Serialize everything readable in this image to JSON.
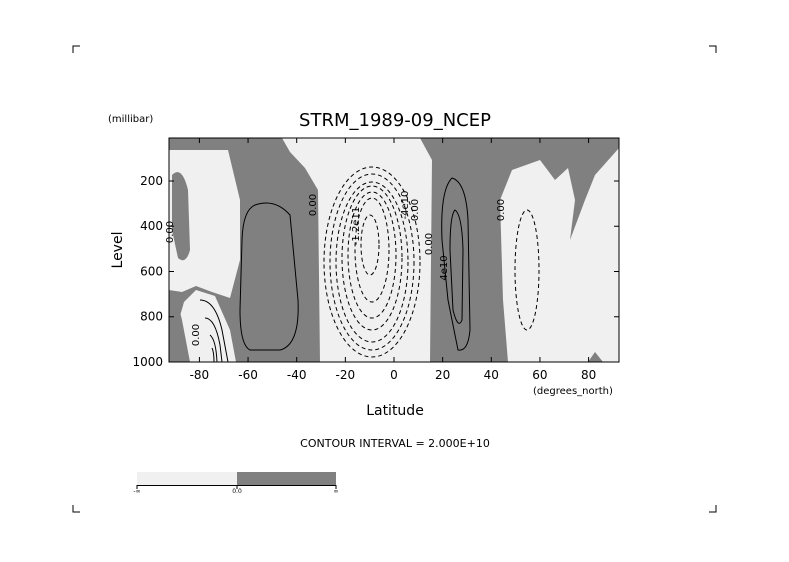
{
  "chart_data": {
    "type": "contour",
    "title": "STRM_1989-09_NCEP",
    "y_units": "(millibar)",
    "y_label": "Level",
    "x_label": "Latitude",
    "x_units": "(degrees_north)",
    "footer": "CONTOUR INTERVAL = 2.000E+10",
    "xlim": [
      -92.5,
      92.5
    ],
    "xticks": [
      -80,
      -60,
      -40,
      -20,
      0,
      20,
      40,
      60,
      80
    ],
    "ylim": [
      1000,
      10
    ],
    "yticks": [
      200,
      400,
      600,
      800,
      1000
    ],
    "contour_labels": [
      "0.00",
      "0.00",
      "0.00",
      "0.00",
      "-1.2e11",
      "-4e10",
      "0.00",
      "4e10",
      "0.00"
    ],
    "colorbar": {
      "labels": [
        "-∞",
        "0.0",
        "∞"
      ],
      "colors": [
        "#f0f0f0",
        "#808080"
      ]
    }
  }
}
